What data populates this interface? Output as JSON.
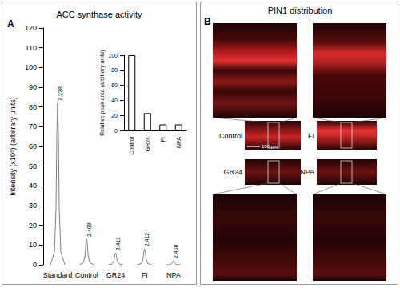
{
  "chart_data": [
    {
      "type": "peaks",
      "title": "ACC synthase activity",
      "y_label": "Intensity (x10⁵) (arbitrary units)",
      "categories": [
        "Standard",
        "Control",
        "GR24",
        "FI",
        "NPA"
      ],
      "values": [
        82,
        13,
        6,
        8,
        2
      ],
      "retention_times": [
        2.228,
        2.409,
        2.411,
        2.412,
        2.408
      ],
      "ylim": [
        0,
        120
      ],
      "yticks": [
        0,
        10,
        20,
        30,
        40,
        50,
        60,
        70,
        80,
        90,
        100,
        110,
        120
      ],
      "color": "#7f7f7f",
      "grid": false
    },
    {
      "type": "bar",
      "y_label": "Relative peak area (arbitrary units)",
      "categories": [
        "Control",
        "GR24",
        "FI",
        "NPA"
      ],
      "values": [
        100,
        23,
        8,
        8
      ],
      "ylim": [
        0,
        100
      ],
      "yticks": [
        0,
        20,
        40,
        60,
        80,
        100
      ],
      "color": "#ffffff",
      "grid": false
    }
  ],
  "panel_labels": [
    "A",
    "B"
  ],
  "images": {
    "title": "PIN1 distribution",
    "labels": [
      "Control",
      "FI",
      "GR24",
      "NPA"
    ],
    "scale_bar": "100 μm"
  }
}
